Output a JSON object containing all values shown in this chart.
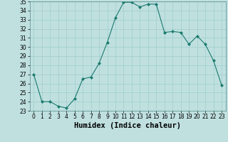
{
  "xlabel": "Humidex (Indice chaleur)",
  "ylabel": "",
  "x": [
    0,
    1,
    2,
    3,
    4,
    5,
    6,
    7,
    8,
    9,
    10,
    11,
    12,
    13,
    14,
    15,
    16,
    17,
    18,
    19,
    20,
    21,
    22,
    23
  ],
  "y": [
    27,
    24,
    24,
    23.5,
    23.3,
    24.3,
    26.5,
    26.7,
    28.2,
    30.5,
    33.2,
    34.9,
    34.9,
    34.4,
    34.7,
    34.7,
    31.6,
    31.7,
    31.6,
    30.3,
    31.2,
    30.3,
    28.5,
    25.8
  ],
  "line_color": "#1a7a6e",
  "marker": "D",
  "marker_size": 2.0,
  "bg_color": "#c0e0e0",
  "grid_color": "#a0cccc",
  "ylim": [
    23,
    35
  ],
  "xlim": [
    -0.5,
    23.5
  ],
  "yticks": [
    23,
    24,
    25,
    26,
    27,
    28,
    29,
    30,
    31,
    32,
    33,
    34,
    35
  ],
  "xticks": [
    0,
    1,
    2,
    3,
    4,
    5,
    6,
    7,
    8,
    9,
    10,
    11,
    12,
    13,
    14,
    15,
    16,
    17,
    18,
    19,
    20,
    21,
    22,
    23
  ],
  "tick_fontsize": 5.5,
  "label_fontsize": 7.5
}
